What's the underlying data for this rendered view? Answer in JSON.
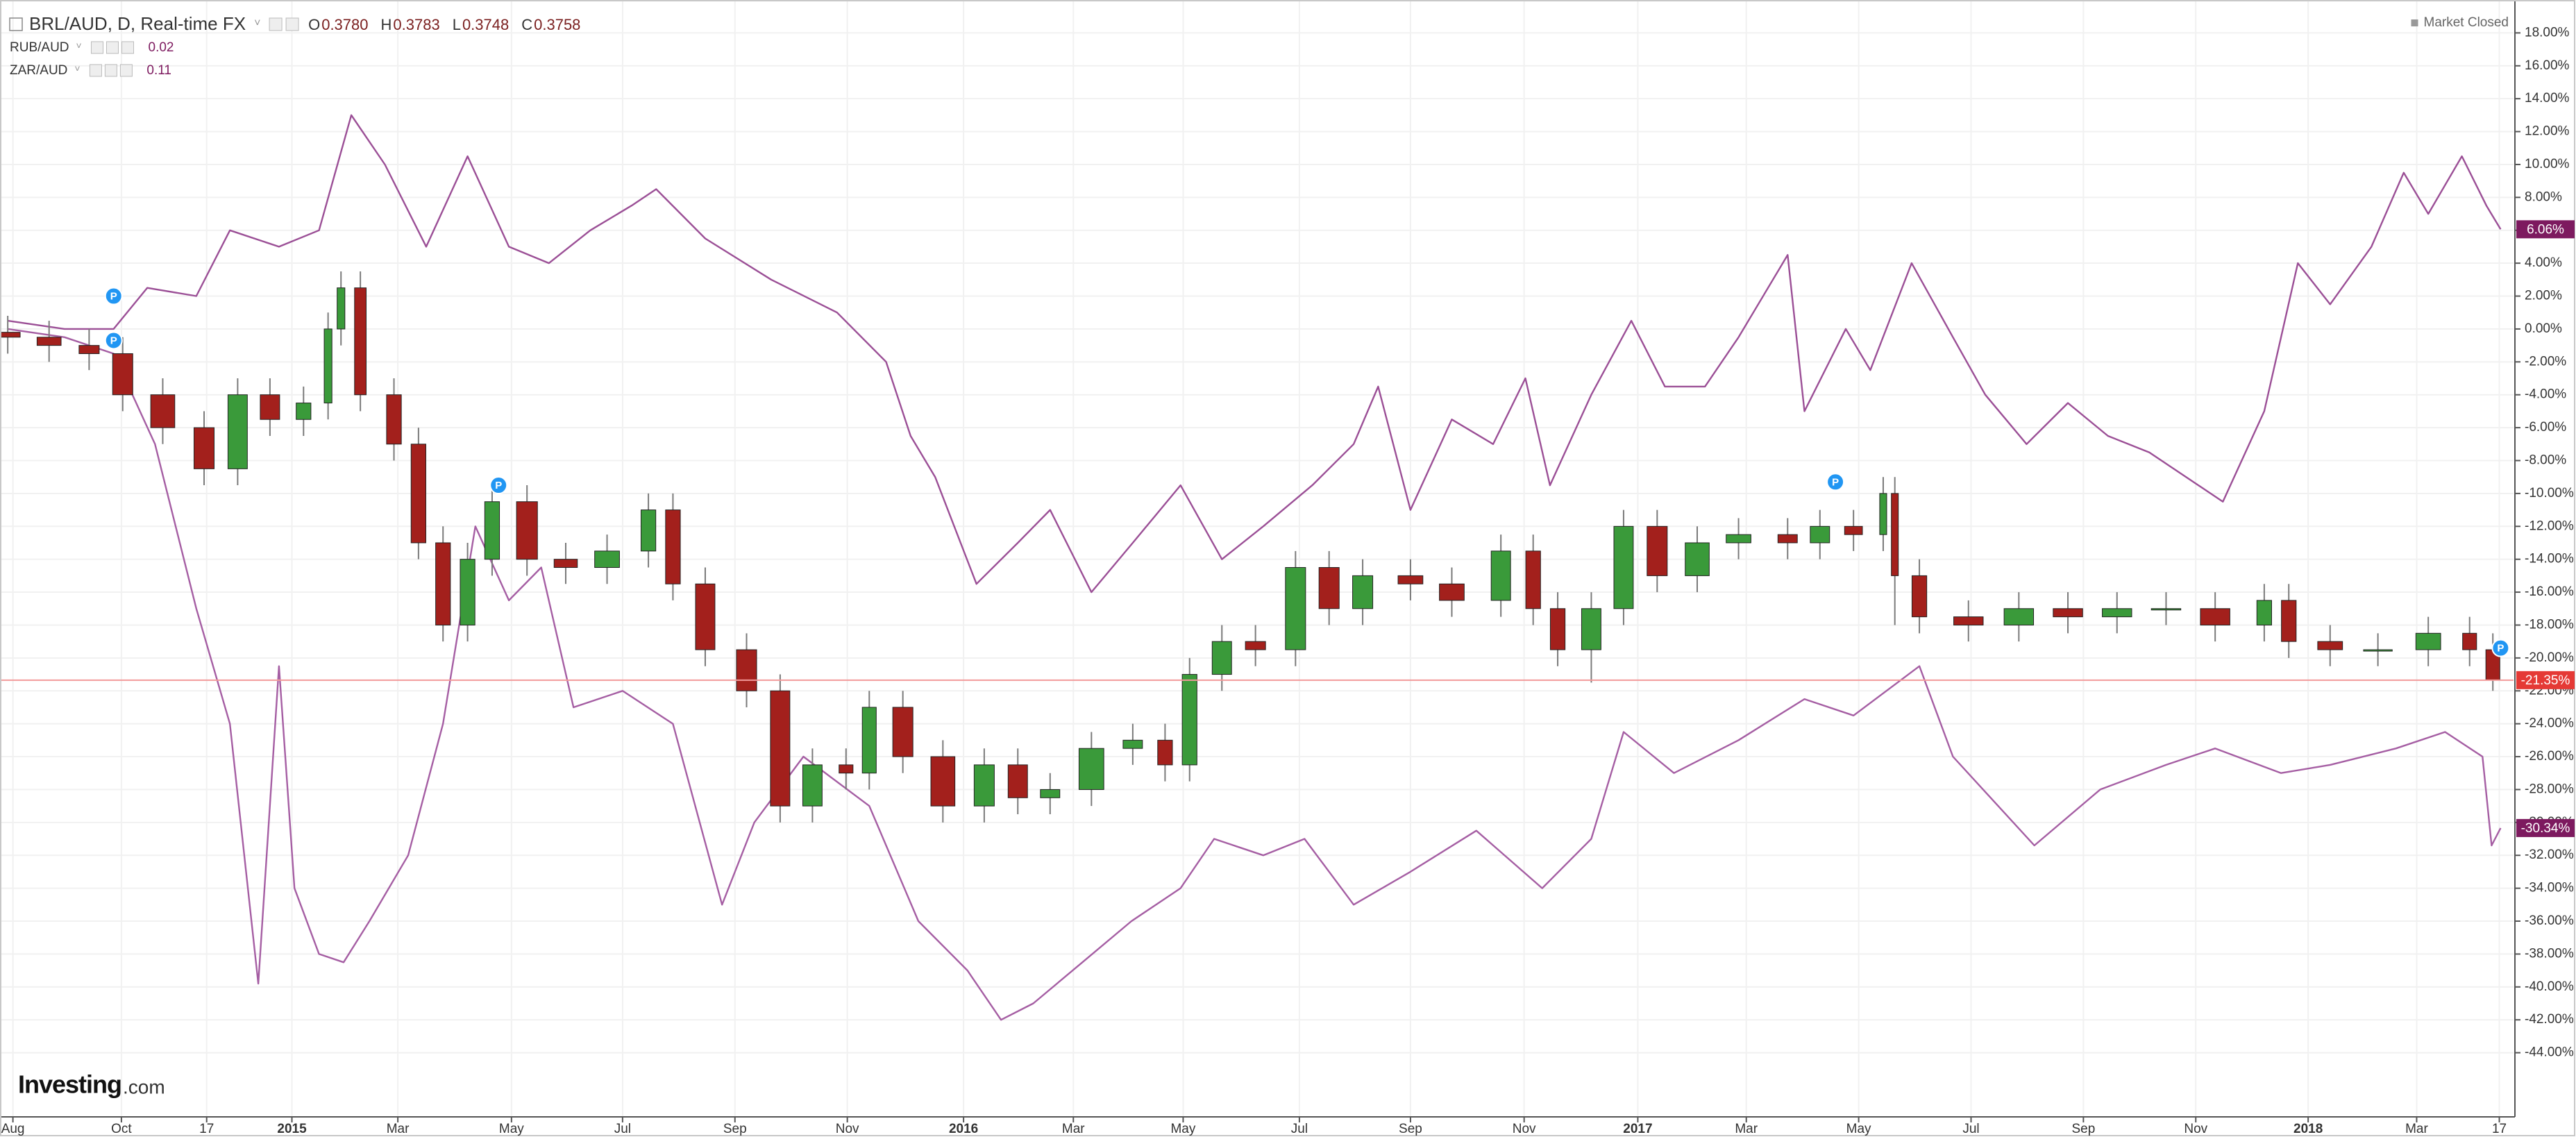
{
  "chart_data": {
    "type": "candlestick",
    "title": "BRL/AUD, D, Real-time FX",
    "quote": [
      {
        "name": "O",
        "value": {
          "value": 0.378,
          "label": "0.3780"
        }
      },
      {
        "name": "H",
        "value": {
          "value": 0.3783,
          "label": "0.3783"
        }
      },
      {
        "name": "L",
        "value": {
          "value": 0.3748,
          "label": "0.3748"
        }
      },
      {
        "name": "C",
        "value": {
          "value": 0.3758,
          "label": "0.3758"
        }
      }
    ],
    "status": "Market Closed",
    "brand": "Investing",
    "brand_domain": ".com",
    "grid": true,
    "xlim": [
      -0.6,
      194
    ],
    "ylim": [
      -47.9,
      20
    ],
    "xticks": [
      {
        "value": 0.4,
        "label": "Aug"
      },
      {
        "value": 8.8,
        "label": "Oct"
      },
      {
        "value": 15.4,
        "label": "17"
      },
      {
        "value": 22,
        "label": "2015"
      },
      {
        "value": 30.2,
        "label": "Mar"
      },
      {
        "value": 39,
        "label": "May"
      },
      {
        "value": 47.6,
        "label": "Jul"
      },
      {
        "value": 56.3,
        "label": "Sep"
      },
      {
        "value": 65,
        "label": "Nov"
      },
      {
        "value": 74,
        "label": "2016"
      },
      {
        "value": 82.5,
        "label": "Mar"
      },
      {
        "value": 91,
        "label": "May"
      },
      {
        "value": 100,
        "label": "Jul"
      },
      {
        "value": 108.6,
        "label": "Sep"
      },
      {
        "value": 117.4,
        "label": "Nov"
      },
      {
        "value": 126.2,
        "label": "2017"
      },
      {
        "value": 134.6,
        "label": "Mar"
      },
      {
        "value": 143.3,
        "label": "May"
      },
      {
        "value": 152,
        "label": "Jul"
      },
      {
        "value": 160.7,
        "label": "Sep"
      },
      {
        "value": 169.4,
        "label": "Nov"
      },
      {
        "value": 178.1,
        "label": "2018"
      },
      {
        "value": 186.5,
        "label": "Mar"
      },
      {
        "value": 192.9,
        "label": "17"
      }
    ],
    "yticks": [
      {
        "value": 18,
        "label": "18.00%"
      },
      {
        "value": 16,
        "label": "16.00%"
      },
      {
        "value": 14,
        "label": "14.00%"
      },
      {
        "value": 12,
        "label": "12.00%"
      },
      {
        "value": 10,
        "label": "10.00%"
      },
      {
        "value": 8,
        "label": "8.00%"
      },
      {
        "value": 6,
        "label": "6.00%"
      },
      {
        "value": 4,
        "label": "4.00%"
      },
      {
        "value": 2,
        "label": "2.00%"
      },
      {
        "value": 0,
        "label": "0.00%"
      },
      {
        "value": -2,
        "label": "-2.00%"
      },
      {
        "value": -4,
        "label": "-4.00%"
      },
      {
        "value": -6,
        "label": "-6.00%"
      },
      {
        "value": -8,
        "label": "-8.00%"
      },
      {
        "value": -10,
        "label": "-10.00%"
      },
      {
        "value": -12,
        "label": "-12.00%"
      },
      {
        "value": -14,
        "label": "-14.00%"
      },
      {
        "value": -16,
        "label": "-16.00%"
      },
      {
        "value": -18,
        "label": "-18.00%"
      },
      {
        "value": -20,
        "label": "-20.00%"
      },
      {
        "value": -22,
        "label": "-22.00%"
      },
      {
        "value": -24,
        "label": "-24.00%"
      },
      {
        "value": -26,
        "label": "-26.00%"
      },
      {
        "value": -28,
        "label": "-28.00%"
      },
      {
        "value": -30,
        "label": "-30.00%"
      },
      {
        "value": -32,
        "label": "-32.00%"
      },
      {
        "value": -34,
        "label": "-34.00%"
      },
      {
        "value": -36,
        "label": "-36.00%"
      },
      {
        "value": -38,
        "label": "-38.00%"
      },
      {
        "value": -40,
        "label": "-40.00%"
      },
      {
        "value": -42,
        "label": "-42.00%"
      },
      {
        "value": -44,
        "label": "-44.00%"
      }
    ],
    "candles": {
      "up_color": "#3a9a3a",
      "down_color": "#a3201c",
      "wick_color": "#7a7a7a",
      "price_line_color": "#f29a9a",
      "badge_color": "#e53935",
      "last_value_label": "-21.35%",
      "x": [
        0,
        3.2,
        6.3,
        8.9,
        12,
        15.2,
        17.8,
        20.3,
        22.9,
        24.8,
        25.8,
        27.3,
        29.9,
        31.8,
        33.7,
        35.6,
        37.5,
        40.2,
        43.2,
        46.4,
        49.6,
        51.5,
        54,
        57.2,
        59.8,
        62.3,
        64.9,
        66.7,
        69.3,
        72.4,
        75.6,
        78.2,
        80.7,
        83.9,
        87.1,
        89.6,
        91.5,
        94,
        96.6,
        99.7,
        102.3,
        104.9,
        108.6,
        111.8,
        115.6,
        118.1,
        120,
        122.6,
        125.1,
        127.7,
        130.8,
        134,
        137.8,
        140.3,
        142.9,
        145.2,
        146.1,
        148,
        151.8,
        155.7,
        159.5,
        163.3,
        167.1,
        170.9,
        174.7,
        176.6,
        179.8,
        183.5,
        187.4,
        190.6,
        192.4
      ],
      "open": [
        -0.2,
        -0.5,
        -1,
        -1.5,
        -4,
        -6,
        -8.5,
        -4,
        -5.5,
        -4.5,
        0,
        2.5,
        -4,
        -7,
        -13,
        -18,
        -14,
        -10.5,
        -14,
        -14.5,
        -13.5,
        -11,
        -15.5,
        -19.5,
        -22,
        -29,
        -26.5,
        -27,
        -23,
        -26,
        -29,
        -26.5,
        -28.5,
        -28,
        -25.5,
        -25,
        -26.5,
        -21,
        -19,
        -19.5,
        -14.5,
        -17,
        -15,
        -15.5,
        -16.5,
        -13.5,
        -17,
        -19.5,
        -17,
        -12,
        -15,
        -13,
        -12.5,
        -13,
        -12,
        -12.5,
        -10,
        -15,
        -17.5,
        -18,
        -17,
        -17.5,
        -17,
        -17,
        -18,
        -16.5,
        -19,
        -19.5,
        -19.5,
        -18.5,
        -19.5
      ],
      "high": [
        0.8,
        0.5,
        0,
        -0.5,
        -3,
        -5,
        -3,
        -3,
        -3.5,
        1,
        3.5,
        3.5,
        -3,
        -6,
        -12,
        -13,
        -9.5,
        -9.5,
        -13,
        -12.5,
        -10,
        -10,
        -14.5,
        -18.5,
        -21,
        -25.5,
        -25.5,
        -22,
        -22,
        -25,
        -25.5,
        -25.5,
        -27,
        -24.5,
        -24,
        -24,
        -20,
        -18,
        -18,
        -13.5,
        -13.5,
        -14,
        -14,
        -14.5,
        -12.5,
        -12.5,
        -16,
        -16,
        -11,
        -11,
        -12,
        -11.5,
        -11.5,
        -11,
        -11,
        -9,
        -9,
        -14,
        -16.5,
        -16,
        -16,
        -16,
        -16,
        -16,
        -15.5,
        -15.5,
        -18,
        -18.5,
        -17.5,
        -17.5,
        -18.5
      ],
      "low": [
        -1.5,
        -2,
        -2.5,
        -5,
        -7,
        -9.5,
        -9.5,
        -6.5,
        -6.5,
        -5.5,
        -1,
        -5,
        -8,
        -14,
        -19,
        -19,
        -15,
        -15,
        -15.5,
        -15.5,
        -14.5,
        -16.5,
        -20.5,
        -23,
        -30,
        -30,
        -28,
        -28,
        -27,
        -30,
        -30,
        -29.5,
        -29.5,
        -29,
        -26.5,
        -27.5,
        -27.5,
        -22,
        -20.5,
        -20.5,
        -18,
        -18,
        -16.5,
        -17.5,
        -17.5,
        -18,
        -20.5,
        -21.5,
        -18,
        -16,
        -16,
        -14,
        -14,
        -14,
        -13.5,
        -13.5,
        -18,
        -18.5,
        -19,
        -19,
        -18.5,
        -18.5,
        -18,
        -19,
        -19,
        -20,
        -20.5,
        -20.5,
        -20.5,
        -20.5,
        -22
      ],
      "close": [
        -0.5,
        -1,
        -1.5,
        -4,
        -6,
        -8.5,
        -4,
        -5.5,
        -4.5,
        0,
        2.5,
        -4,
        -7,
        -13,
        -18,
        -14,
        -10.5,
        -14,
        -14.5,
        -13.5,
        -11,
        -15.5,
        -19.5,
        -22,
        -29,
        -26.5,
        -27,
        -23,
        -26,
        -29,
        -26.5,
        -28.5,
        -28,
        -25.5,
        -25,
        -26.5,
        -21,
        -19,
        -19.5,
        -14.5,
        -17,
        -15,
        -15.5,
        -16.5,
        -13.5,
        -17,
        -19.5,
        -17,
        -12,
        -15,
        -13,
        -12.5,
        -13,
        -12,
        -12.5,
        -10,
        -15,
        -17.5,
        -18,
        -17,
        -17.5,
        -17,
        -17,
        -18,
        -16.5,
        -19,
        -19.5,
        -19.5,
        -18.5,
        -19.5,
        -21.35
      ]
    },
    "series": [
      {
        "name": "RUB/AUD",
        "legend_value": 0.02,
        "color": "#a55ea3",
        "badge_color": "#7d1a5f",
        "last_value_label": "-30.34%",
        "x": [
          0,
          4.4,
          8.2,
          11.4,
          14.6,
          17.2,
          19.4,
          21,
          22.2,
          24.1,
          26,
          28,
          31,
          33.7,
          36.2,
          38.8,
          41.3,
          43.8,
          47.6,
          51.5,
          55.3,
          57.8,
          61.6,
          66.7,
          70.5,
          74.3,
          76.9,
          79.4,
          83.2,
          87,
          90.8,
          93.4,
          97.2,
          100.4,
          104.2,
          108.6,
          113.7,
          118.8,
          122.6,
          125.1,
          129,
          134,
          139.1,
          142.9,
          148,
          150.6,
          156.9,
          162,
          167.1,
          170.9,
          176,
          179.8,
          184.9,
          188.7,
          191.6,
          192.3,
          193
        ],
        "values": [
          0,
          -0.5,
          -1.5,
          -7,
          -17,
          -24,
          -39.8,
          -20.5,
          -34,
          -38,
          -38.5,
          -36,
          -32,
          -24,
          -12,
          -16.5,
          -14.5,
          -23,
          -22,
          -24,
          -35,
          -30,
          -26,
          -29,
          -36,
          -39,
          -42,
          -41,
          -38.5,
          -36,
          -34,
          -31,
          -32,
          -31,
          -35,
          -33,
          -30.5,
          -34,
          -31,
          -24.5,
          -27,
          -25,
          -22.5,
          -23.5,
          -20.5,
          -26,
          -31.4,
          -28,
          -26.5,
          -25.5,
          -27,
          -26.5,
          -25.5,
          -24.5,
          -26,
          -31.4,
          -30.34
        ]
      },
      {
        "name": "ZAR/AUD",
        "legend_value": 0.11,
        "color": "#9b4f96",
        "badge_color": "#7d1a5f",
        "last_value_label": "6.06%",
        "x": [
          0,
          4.4,
          8.2,
          10.8,
          14.6,
          17.2,
          21,
          24.1,
          26.6,
          29.2,
          32.4,
          35.6,
          38.8,
          41.9,
          45.1,
          48.3,
          50.2,
          54,
          59.1,
          64.2,
          68,
          69.9,
          71.8,
          75,
          78.2,
          80.7,
          83.9,
          87.1,
          90.8,
          94,
          97.2,
          101,
          104.2,
          106.1,
          108.6,
          111.8,
          115,
          117.5,
          119.4,
          122.6,
          125.7,
          128.3,
          131.4,
          134,
          137.8,
          139.1,
          142.3,
          144.2,
          147.4,
          150.6,
          153.1,
          156.3,
          159.5,
          162.6,
          165.8,
          169.6,
          171.5,
          174.7,
          177.3,
          179.8,
          183,
          185.5,
          187.4,
          190,
          191.9,
          193
        ],
        "values": [
          0.5,
          0,
          0,
          2.5,
          2,
          6,
          5,
          6,
          13,
          10,
          5,
          10.5,
          5,
          4,
          6,
          7.5,
          8.5,
          5.5,
          3,
          1,
          -2,
          -6.5,
          -9,
          -15.5,
          -13,
          -11,
          -16,
          -13,
          -9.5,
          -14,
          -12,
          -9.5,
          -7,
          -3.5,
          -11,
          -5.5,
          -7,
          -3,
          -9.5,
          -4,
          0.5,
          -3.5,
          -3.5,
          -0.5,
          4.5,
          -5,
          0,
          -2.5,
          4,
          -0.5,
          -4,
          -7,
          -4.5,
          -6.5,
          -7.5,
          -9.5,
          -10.5,
          -5,
          4,
          1.5,
          5,
          9.5,
          7,
          10.5,
          7.5,
          6.06
        ]
      }
    ],
    "events": [
      {
        "x": 8.2,
        "y": 2,
        "label": "P"
      },
      {
        "x": 8.2,
        "y": -0.7,
        "label": "P"
      },
      {
        "x": 38,
        "y": -9.5,
        "label": "P"
      },
      {
        "x": 141.5,
        "y": -9.3,
        "label": "P"
      },
      {
        "x": 193,
        "y": -19.4,
        "label": "P"
      }
    ]
  }
}
